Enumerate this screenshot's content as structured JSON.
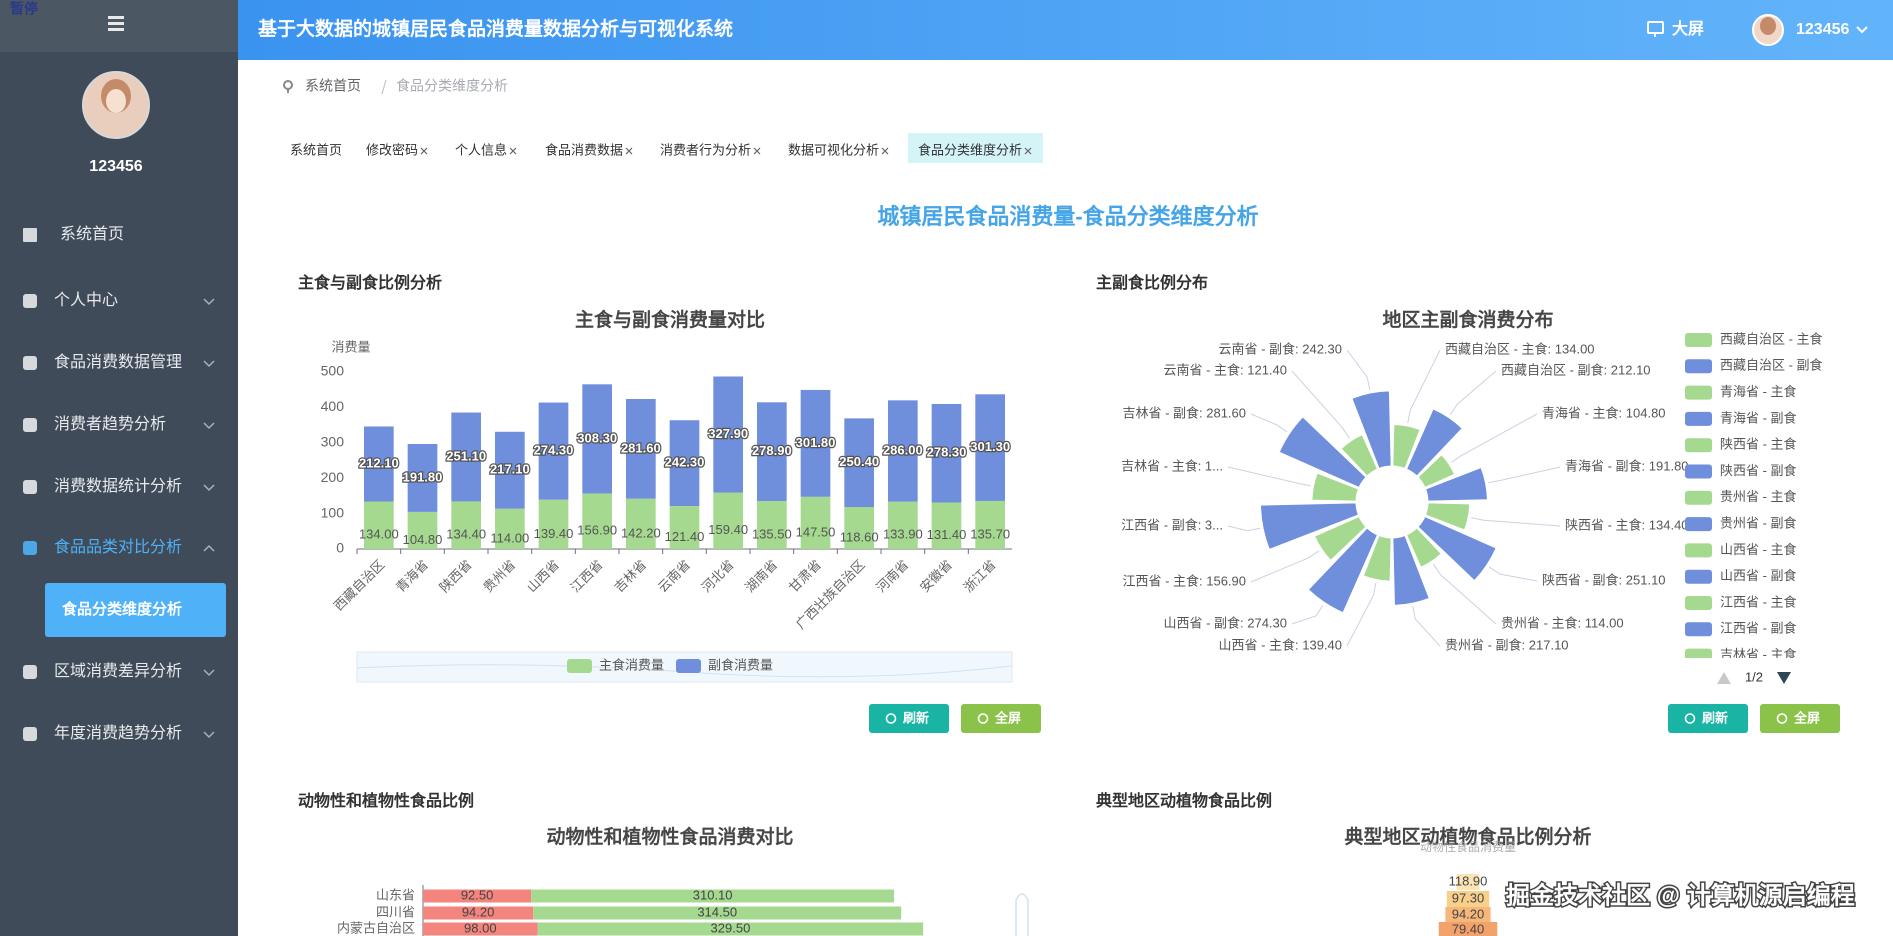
{
  "sidebar": {
    "badge": "暂停",
    "username": "123456",
    "menu": [
      {
        "label": "系统首页"
      },
      {
        "label": "个人中心"
      },
      {
        "label": "食品消费数据管理"
      },
      {
        "label": "消费者趋势分析"
      },
      {
        "label": "消费数据统计分析"
      },
      {
        "label": "食品品类对比分析",
        "expanded": true,
        "children": [
          "食品分类维度分析"
        ]
      },
      {
        "label": "区域消费差异分析"
      },
      {
        "label": "年度消费趋势分析"
      }
    ]
  },
  "header": {
    "title": "基于大数据的城镇居民食品消费量数据分析与可视化系统",
    "screen": "大屏",
    "user": "123456"
  },
  "breadcrumb": [
    "系统首页",
    "食品分类维度分析"
  ],
  "tabs": [
    "系统首页",
    "修改密码",
    "个人信息",
    "食品消费数据",
    "消费者行为分析",
    "数据可视化分析",
    "食品分类维度分析"
  ],
  "page_title": "城镇居民食品消费量-食品分类维度分析",
  "panels": [
    {
      "heading": "主食与副食比例分析",
      "buttons": [
        "刷新",
        "全屏"
      ]
    },
    {
      "heading": "主副食比例分布",
      "buttons": [
        "刷新",
        "全屏"
      ]
    },
    {
      "heading": "动物性和植物性食品比例"
    },
    {
      "heading": "典型地区动植物食品比例"
    }
  ],
  "chart_data": [
    {
      "type": "bar",
      "stacked": true,
      "title": "主食与副食消费量对比",
      "y_label": "消费量",
      "categories": [
        "西藏自治区",
        "青海省",
        "陕西省",
        "贵州省",
        "山西省",
        "江西省",
        "吉林省",
        "云南省",
        "河北省",
        "湖南省",
        "甘肃省",
        "广西壮族自治区",
        "河南省",
        "安徽省",
        "浙江省"
      ],
      "series": [
        {
          "name": "主食消费量",
          "color": "#a5d98f",
          "values": [
            134,
            104.8,
            134.4,
            114,
            139.4,
            156.9,
            142.2,
            121.4,
            159.4,
            135.5,
            147.5,
            118.6,
            133.9,
            131.4,
            135.7
          ],
          "value_labels": [
            "134.00",
            "104.80",
            "134.40",
            "114.00",
            "139.40",
            "156.90",
            "142.20",
            "121.40",
            "159.40",
            "135.50",
            "147.50",
            "118.60",
            "133.90",
            "131.40",
            "135.70"
          ]
        },
        {
          "name": "副食消费量",
          "color": "#6f8edc",
          "values": [
            212.1,
            191.8,
            251.1,
            217.1,
            274.3,
            308.3,
            281.6,
            242.3,
            327.9,
            278.9,
            301.8,
            250.4,
            286,
            278.3,
            301.3
          ],
          "value_labels": [
            "212.10",
            "191.80",
            "251.10",
            "217.10",
            "274.30",
            "308.30",
            "281.60",
            "242.30",
            "327.90",
            "278.90",
            "301.80",
            "250.40",
            "286.00",
            "278.30",
            "301.30"
          ]
        }
      ],
      "ylim": [
        0,
        500
      ],
      "yticks": [
        0,
        100,
        200,
        300,
        400,
        500
      ],
      "grid": false,
      "legend": "bottom"
    },
    {
      "type": "rose",
      "title": "地区主副食消费分布",
      "categories": [
        "西藏自治区 - 主食",
        "西藏自治区 - 副食",
        "青海省 - 主食",
        "青海省 - 副食",
        "陕西省 - 主食",
        "陕西省 - 副食",
        "贵州省 - 主食",
        "贵州省 - 副食",
        "山西省 - 主食",
        "山西省 - 副食",
        "江西省 - 主食",
        "江西省 - 副食",
        "吉林省 - 主食",
        "吉林省 - 副食",
        "云南省 - 主食",
        "云南省 - 副食"
      ],
      "values": [
        134,
        212.1,
        104.8,
        191.8,
        134.4,
        251.1,
        114,
        217.1,
        139.4,
        274.3,
        156.9,
        308.3,
        142.2,
        281.6,
        121.4,
        242.3
      ],
      "labels": [
        "西藏自治区 - 主食: 134.00",
        "西藏自治区 - 副食: 212.10",
        "青海省 - 主食: 104.80",
        "青海省 - 副食: 191.80",
        "陕西省 - 主食: 134.40",
        "陕西省 - 副食: 251.10",
        "贵州省 - 主食: 114.00",
        "贵州省 - 副食: 217.10",
        "山西省 - 主食: 139.40",
        "山西省 - 副食: 274.30",
        "江西省 - 主食: 156.90",
        "江西省 - 副食: 3...",
        "吉林省 - 主食: 1...",
        "吉林省 - 副食: 281.60",
        "云南省 - 主食: 121.40",
        "云南省 - 副食: 242.30"
      ],
      "colors": [
        "#a5d98f",
        "#6f8edc"
      ],
      "legend": "right",
      "legend_page": "1/2"
    },
    {
      "type": "hbar",
      "stacked": true,
      "title": "动物性和植物性食品消费对比",
      "categories": [
        "山东省",
        "四川省",
        "内蒙古自治区"
      ],
      "series": [
        {
          "color": "#f4847e",
          "values": [
            92.5,
            94.2,
            98
          ],
          "value_labels": [
            "92.50",
            "94.20",
            "98.00"
          ]
        },
        {
          "color": "#a5d98f",
          "values": [
            310.1,
            314.5,
            329.5
          ],
          "value_labels": [
            "310.10",
            "314.50",
            "329.50"
          ]
        }
      ]
    },
    {
      "type": "pyramid",
      "title": "典型地区动植物食品比例分析",
      "axis_label": "动物性食品消费量",
      "values": [
        118.9,
        97.3,
        94.2,
        79.4
      ],
      "value_labels": [
        "118.90",
        "97.30",
        "94.20",
        "79.40"
      ],
      "colors": [
        "#fbe3b4",
        "#f9d08a",
        "#f6b77a",
        "#f3a26b"
      ]
    }
  ],
  "watermark": "掘金技术社区 @ 计算机源启编程"
}
